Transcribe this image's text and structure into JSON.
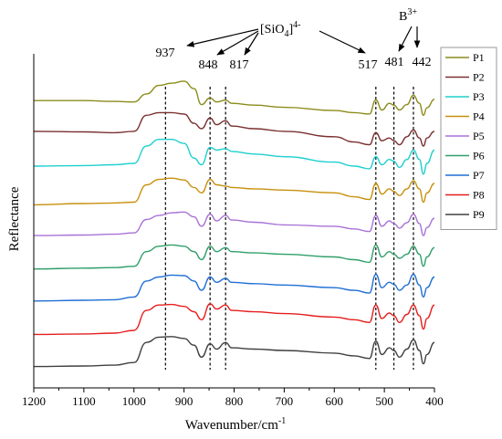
{
  "chart_data": {
    "type": "line",
    "xlabel": "Wavenumber/cm",
    "xlabel_sup": "-1",
    "ylabel": "Reflectance",
    "xlim": [
      1200,
      400
    ],
    "x_reversed": true,
    "x_ticks": [
      "1200",
      "1100",
      "1000",
      "900",
      "800",
      "700",
      "600",
      "500",
      "400"
    ],
    "y_ticks": "none",
    "grid": false,
    "legend_placement": "right-upper",
    "stacked_offsets": true,
    "reference_lines": [
      {
        "x": 937,
        "label": "937"
      },
      {
        "x": 848,
        "label": "848"
      },
      {
        "x": 817,
        "label": "817"
      },
      {
        "x": 517,
        "label": "517"
      },
      {
        "x": 481,
        "label": "481"
      },
      {
        "x": 442,
        "label": "442"
      }
    ],
    "annotations": [
      {
        "text": "[SiO",
        "sub": "4",
        "close": "]",
        "sup": "4-",
        "points_to": [
          937,
          848,
          817,
          517
        ]
      },
      {
        "text": "B",
        "sup": "3+",
        "points_to": [
          481,
          442
        ]
      }
    ],
    "series": [
      {
        "name": "P1",
        "color": "#8c8c1c",
        "x": [
          1200,
          1100,
          1040,
          1000,
          975,
          950,
          925,
          900,
          880,
          865,
          848,
          835,
          817,
          805,
          760,
          700,
          600,
          560,
          530,
          517,
          505,
          490,
          481,
          470,
          455,
          442,
          430,
          422,
          415,
          400
        ],
        "y": [
          0.875,
          0.875,
          0.872,
          0.87,
          0.9,
          0.932,
          0.94,
          0.948,
          0.92,
          0.86,
          0.885,
          0.87,
          0.877,
          0.865,
          0.858,
          0.85,
          0.838,
          0.83,
          0.825,
          0.878,
          0.84,
          0.865,
          0.858,
          0.84,
          0.86,
          0.895,
          0.865,
          0.82,
          0.848,
          0.88
        ]
      },
      {
        "name": "P2",
        "color": "#7a3030",
        "x": [
          1200,
          1100,
          1040,
          1000,
          975,
          950,
          925,
          900,
          880,
          865,
          848,
          835,
          817,
          805,
          760,
          700,
          600,
          560,
          530,
          517,
          505,
          490,
          481,
          470,
          455,
          442,
          430,
          422,
          415,
          400
        ],
        "y": [
          0.76,
          0.758,
          0.755,
          0.76,
          0.82,
          0.83,
          0.83,
          0.825,
          0.79,
          0.77,
          0.81,
          0.785,
          0.8,
          0.78,
          0.77,
          0.76,
          0.74,
          0.72,
          0.71,
          0.755,
          0.725,
          0.735,
          0.725,
          0.71,
          0.74,
          0.765,
          0.735,
          0.705,
          0.735,
          0.76
        ]
      },
      {
        "name": "P3",
        "color": "#1fcfcf",
        "x": [
          1200,
          1100,
          1040,
          1000,
          975,
          950,
          925,
          900,
          880,
          865,
          848,
          835,
          817,
          805,
          760,
          700,
          600,
          560,
          530,
          517,
          505,
          490,
          481,
          470,
          455,
          442,
          430,
          422,
          415,
          400
        ],
        "y": [
          0.63,
          0.632,
          0.635,
          0.64,
          0.705,
          0.73,
          0.73,
          0.715,
          0.66,
          0.635,
          0.7,
          0.69,
          0.695,
          0.685,
          0.675,
          0.665,
          0.645,
          0.63,
          0.62,
          0.665,
          0.635,
          0.655,
          0.648,
          0.625,
          0.655,
          0.69,
          0.655,
          0.6,
          0.64,
          0.69
        ]
      },
      {
        "name": "P4",
        "color": "#c8900c",
        "x": [
          1200,
          1100,
          1040,
          1000,
          975,
          950,
          925,
          900,
          880,
          865,
          848,
          835,
          817,
          805,
          760,
          700,
          600,
          560,
          530,
          517,
          505,
          490,
          481,
          470,
          455,
          442,
          430,
          422,
          415,
          400
        ],
        "y": [
          0.485,
          0.49,
          0.492,
          0.495,
          0.56,
          0.58,
          0.585,
          0.578,
          0.55,
          0.53,
          0.58,
          0.56,
          0.555,
          0.55,
          0.545,
          0.54,
          0.53,
          0.515,
          0.505,
          0.565,
          0.525,
          0.545,
          0.535,
          0.52,
          0.545,
          0.575,
          0.545,
          0.495,
          0.53,
          0.565
        ]
      },
      {
        "name": "P5",
        "color": "#a972d6",
        "x": [
          1200,
          1100,
          1040,
          1000,
          975,
          950,
          925,
          900,
          880,
          865,
          848,
          835,
          817,
          805,
          760,
          700,
          600,
          560,
          530,
          517,
          505,
          490,
          481,
          470,
          455,
          442,
          430,
          422,
          415,
          400
        ],
        "y": [
          0.37,
          0.372,
          0.375,
          0.38,
          0.43,
          0.445,
          0.455,
          0.458,
          0.44,
          0.405,
          0.45,
          0.425,
          0.445,
          0.428,
          0.42,
          0.41,
          0.405,
          0.395,
          0.385,
          0.445,
          0.405,
          0.425,
          0.415,
          0.398,
          0.418,
          0.45,
          0.415,
          0.37,
          0.4,
          0.435
        ]
      },
      {
        "name": "P6",
        "color": "#2f9f6a",
        "x": [
          1200,
          1100,
          1040,
          1000,
          975,
          950,
          925,
          900,
          880,
          865,
          848,
          835,
          817,
          805,
          760,
          700,
          600,
          560,
          530,
          517,
          505,
          490,
          481,
          470,
          455,
          442,
          430,
          422,
          415,
          400
        ],
        "y": [
          0.245,
          0.248,
          0.25,
          0.255,
          0.31,
          0.33,
          0.335,
          0.33,
          0.31,
          0.28,
          0.33,
          0.31,
          0.325,
          0.31,
          0.305,
          0.3,
          0.29,
          0.28,
          0.27,
          0.335,
          0.29,
          0.31,
          0.3,
          0.285,
          0.3,
          0.33,
          0.3,
          0.255,
          0.29,
          0.325
        ]
      },
      {
        "name": "P7",
        "color": "#1f6fd6",
        "x": [
          1200,
          1100,
          1040,
          1000,
          975,
          950,
          925,
          900,
          880,
          865,
          848,
          835,
          817,
          805,
          760,
          700,
          600,
          560,
          530,
          517,
          505,
          490,
          481,
          470,
          455,
          442,
          430,
          422,
          415,
          400
        ],
        "y": [
          0.125,
          0.128,
          0.13,
          0.14,
          0.2,
          0.215,
          0.222,
          0.22,
          0.2,
          0.165,
          0.215,
          0.195,
          0.21,
          0.195,
          0.19,
          0.185,
          0.175,
          0.165,
          0.155,
          0.225,
          0.175,
          0.195,
          0.188,
          0.165,
          0.185,
          0.225,
          0.185,
          0.14,
          0.175,
          0.215
        ]
      },
      {
        "name": "P8",
        "color": "#e61e1e",
        "x": [
          1200,
          1100,
          1040,
          1000,
          975,
          950,
          925,
          900,
          880,
          865,
          848,
          835,
          817,
          805,
          760,
          700,
          600,
          560,
          530,
          517,
          505,
          490,
          481,
          470,
          455,
          442,
          430,
          422,
          415,
          400
        ],
        "y": [
          0.0,
          0.002,
          0.005,
          0.015,
          0.09,
          0.11,
          0.112,
          0.105,
          0.085,
          0.055,
          0.115,
          0.095,
          0.11,
          0.09,
          0.085,
          0.078,
          0.065,
          0.055,
          0.045,
          0.11,
          0.06,
          0.08,
          0.07,
          0.045,
          0.075,
          0.11,
          0.07,
          0.02,
          0.06,
          0.11
        ]
      },
      {
        "name": "P9",
        "color": "#404040",
        "x": [
          1200,
          1100,
          1040,
          1000,
          975,
          950,
          925,
          900,
          880,
          865,
          848,
          835,
          817,
          805,
          760,
          700,
          600,
          560,
          530,
          517,
          505,
          490,
          481,
          470,
          455,
          442,
          430,
          422,
          415,
          400
        ],
        "y": [
          -0.12,
          -0.118,
          -0.115,
          -0.105,
          -0.03,
          -0.01,
          -0.008,
          -0.015,
          -0.04,
          -0.085,
          -0.035,
          -0.055,
          -0.03,
          -0.05,
          -0.055,
          -0.06,
          -0.07,
          -0.08,
          -0.09,
          -0.025,
          -0.075,
          -0.05,
          -0.06,
          -0.085,
          -0.055,
          -0.02,
          -0.06,
          -0.11,
          -0.075,
          -0.03
        ]
      }
    ]
  }
}
